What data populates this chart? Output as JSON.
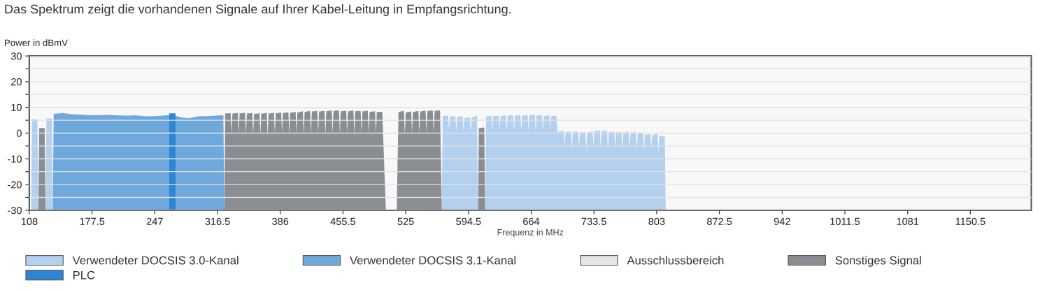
{
  "chart_data": {
    "type": "area",
    "title": "Das Spektrum zeigt die vorhandenen Signale auf Ihrer Kabel-Leitung in Empfangsrichtung.",
    "ylabel": "Power in dBmV",
    "xlabel": "Frequenz in MHz",
    "xlim": [
      108,
      1218
    ],
    "xticks": [
      108,
      177.5,
      247,
      316.5,
      386,
      455.5,
      525,
      594.5,
      664,
      733.5,
      803,
      872.5,
      942,
      1011.5,
      1081,
      1150.5
    ],
    "ylim": [
      -30,
      30
    ],
    "yticks": [
      -30,
      {
        "value": -25,
        "label": null
      },
      -20,
      {
        "value": -15,
        "label": null
      },
      -10,
      {
        "value": -5,
        "label": null
      },
      0,
      {
        "value": 5,
        "label": null
      },
      10,
      {
        "value": 15,
        "label": null
      },
      20,
      {
        "value": 25,
        "label": null
      },
      30
    ],
    "grid": "y",
    "legend": "bottom",
    "series": [
      {
        "name": "Verwendeter DOCSIS 3.0-Kanal",
        "color": "#b3d1ee",
        "x": [
          110,
          111,
          117,
          118,
          122,
          126,
          127,
          133,
          134,
          560,
          565,
          566,
          572,
          573,
          574,
          580,
          581,
          582,
          588,
          589,
          590,
          596,
          597,
          598,
          604,
          605,
          609,
          613,
          614,
          620,
          621,
          622,
          628,
          629,
          630,
          636,
          637,
          638,
          644,
          645,
          646,
          652,
          653,
          654,
          660,
          661,
          662,
          668,
          669,
          670,
          676,
          677,
          678,
          684,
          685,
          686,
          692,
          693,
          694,
          700,
          701,
          702,
          708,
          709,
          710,
          716,
          717,
          718,
          724,
          725,
          726,
          732,
          733,
          734,
          740,
          741,
          742,
          748,
          749,
          750,
          756,
          757,
          758,
          764,
          765,
          766,
          772,
          773,
          774,
          780,
          781,
          782,
          788,
          789,
          790,
          796,
          797,
          798,
          804,
          805,
          806,
          812,
          813
        ],
        "values": [
          -30,
          5.5,
          5.3,
          -30,
          null,
          -30,
          5.8,
          5.6,
          -30,
          null,
          -30,
          6.6,
          6.8,
          1.0,
          6.4,
          6.6,
          0.8,
          6.2,
          6.6,
          1.0,
          5.8,
          6.2,
          0.5,
          6.0,
          6.8,
          -30,
          null,
          -30,
          6.4,
          6.8,
          1.0,
          6.6,
          6.8,
          1.0,
          6.6,
          7.0,
          1.0,
          6.8,
          7.0,
          1.0,
          6.8,
          7.0,
          1.0,
          6.8,
          7.0,
          1.0,
          6.8,
          7.2,
          1.0,
          6.8,
          7.0,
          1.0,
          6.6,
          7.0,
          1.0,
          6.6,
          6.8,
          0.0,
          0.6,
          0.9,
          -5.0,
          0.4,
          0.7,
          -7.0,
          0.4,
          0.6,
          -6.0,
          0.3,
          0.5,
          -7.0,
          0.2,
          0.6,
          -5.0,
          0.8,
          1.0,
          -6.0,
          0.8,
          1.0,
          -7.0,
          0.4,
          0.6,
          -6.0,
          0.3,
          0.5,
          -7.0,
          0.2,
          0.6,
          -6.0,
          0.2,
          0.4,
          -7.0,
          -0.2,
          0.2,
          -7.0,
          -0.6,
          -0.4,
          -6.0,
          -0.8,
          -0.2,
          -7.5,
          -1.0,
          -1.4,
          -30
        ]
      },
      {
        "name": "Verwendeter DOCSIS 3.1-Kanal",
        "color": "#6fa8dc",
        "x": [
          134,
          135,
          145,
          155,
          165,
          175,
          185,
          195,
          205,
          215,
          225,
          235,
          245,
          255,
          262,
          270,
          275,
          285,
          295,
          305,
          315,
          323,
          324
        ],
        "values": [
          -30,
          7.5,
          7.8,
          7.3,
          7.2,
          7.0,
          7.0,
          7.1,
          6.9,
          6.8,
          6.9,
          6.6,
          6.5,
          6.8,
          7.0,
          6.8,
          6.2,
          5.8,
          6.5,
          6.6,
          6.8,
          7.0,
          -30
        ]
      },
      {
        "name": "Ausschlussbereich",
        "color": "#e6e6e6"
      },
      {
        "name": "Sonstiges Signal",
        "color": "#8a8d91",
        "x": [
          118,
          119,
          125,
          126,
          200,
          324,
          325,
          331,
          332,
          333,
          339,
          340,
          341,
          347,
          348,
          349,
          355,
          356,
          357,
          363,
          364,
          365,
          371,
          372,
          373,
          379,
          380,
          381,
          387,
          388,
          389,
          395,
          396,
          397,
          403,
          404,
          405,
          411,
          412,
          413,
          419,
          420,
          421,
          427,
          428,
          429,
          435,
          436,
          437,
          443,
          444,
          445,
          451,
          452,
          453,
          459,
          460,
          461,
          467,
          468,
          469,
          475,
          476,
          477,
          483,
          484,
          485,
          491,
          492,
          493,
          499,
          503,
          509,
          515,
          517,
          523,
          524,
          525,
          531,
          532,
          533,
          539,
          540,
          541,
          547,
          548,
          549,
          555,
          556,
          557,
          563,
          565,
          585,
          605,
          606,
          612,
          613
        ],
        "values": [
          -30,
          2.0,
          2.0,
          -30,
          null,
          -30,
          7.6,
          7.8,
          0.0,
          7.6,
          7.9,
          0.0,
          7.7,
          7.9,
          -0.5,
          7.6,
          7.8,
          0.0,
          7.5,
          7.7,
          -0.5,
          7.6,
          7.8,
          -1.0,
          7.6,
          7.9,
          0.0,
          7.7,
          8.0,
          0.0,
          7.8,
          8.1,
          -0.5,
          7.9,
          8.3,
          0.0,
          8.0,
          8.5,
          0.0,
          8.2,
          8.6,
          -0.5,
          8.4,
          8.6,
          0.0,
          8.4,
          8.6,
          -0.5,
          8.5,
          8.8,
          0.0,
          8.6,
          8.8,
          0.0,
          8.5,
          8.7,
          0.0,
          8.4,
          8.8,
          -0.5,
          8.5,
          8.6,
          0.0,
          8.4,
          8.7,
          0.0,
          8.3,
          8.5,
          0.0,
          8.2,
          8.3,
          -30,
          null,
          -30,
          8.2,
          8.6,
          -0.5,
          8.0,
          8.4,
          0.0,
          8.2,
          8.6,
          0.0,
          8.4,
          8.7,
          0.0,
          8.6,
          8.8,
          0.0,
          8.7,
          8.8,
          -30,
          null,
          -30,
          2.0,
          2.2,
          -30
        ]
      },
      {
        "name": "PLC",
        "color": "#2d86d4",
        "x": [
          263,
          263,
          270,
          270
        ],
        "values": [
          -30,
          7.7,
          7.7,
          -30
        ]
      }
    ]
  }
}
